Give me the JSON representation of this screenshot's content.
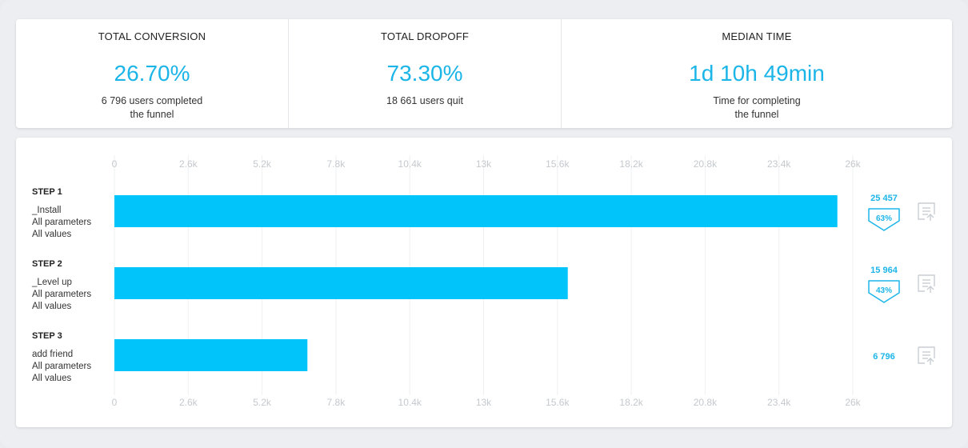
{
  "summary": {
    "conversion": {
      "title": "TOTAL CONVERSION",
      "value": "26.70%",
      "desc_line1": "6 796 users completed",
      "desc_line2": "the funnel"
    },
    "dropoff": {
      "title": "TOTAL DROPOFF",
      "value": "73.30%",
      "desc_line1": "18 661 users quit",
      "desc_line2": ""
    },
    "median": {
      "title": "MEDIAN TIME",
      "value": "1d 10h 49min",
      "desc_line1": "Time for completing",
      "desc_line2": "the funnel"
    }
  },
  "colors": {
    "accent": "#1cb5e8",
    "bar": "#00c4fa",
    "grid": "#eef0f2",
    "tick": "#c4c9ce"
  },
  "icons": {
    "step_action": "list-detail-icon",
    "drop_badge": "chevron-badge-icon"
  },
  "chart_data": {
    "type": "bar",
    "orientation": "horizontal",
    "xlim": [
      0,
      26000
    ],
    "ticks": [
      0,
      2600,
      5200,
      7800,
      10400,
      13000,
      15600,
      18200,
      20800,
      23400,
      26000
    ],
    "tick_labels": [
      "0",
      "2.6k",
      "5.2k",
      "7.8k",
      "10.4k",
      "13k",
      "15.6k",
      "18.2k",
      "20.8k",
      "23.4k",
      "26k"
    ],
    "grid": true,
    "steps": [
      {
        "title": "STEP 1",
        "event": "_Install",
        "params": "All parameters",
        "values_text": "All values",
        "value": 25457,
        "count_label": "25 457",
        "conversion_label": "63%"
      },
      {
        "title": "STEP 2",
        "event": "_Level up",
        "params": "All parameters",
        "values_text": "All values",
        "value": 15964,
        "count_label": "15 964",
        "conversion_label": "43%"
      },
      {
        "title": "STEP 3",
        "event": "add friend",
        "params": "All parameters",
        "values_text": "All values",
        "value": 6796,
        "count_label": "6 796",
        "conversion_label": ""
      }
    ]
  }
}
